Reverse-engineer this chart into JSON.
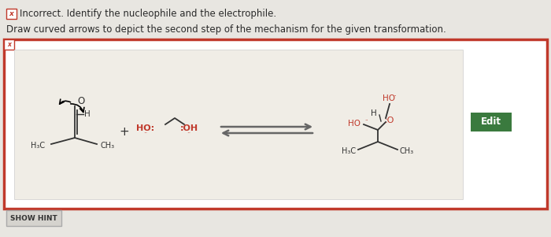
{
  "bg_color": "#d8d5d0",
  "page_bg": "#e8e6e1",
  "inner_bg": "#f0ede6",
  "panel_border": "#c0392b",
  "red_text": "#c0392b",
  "dark_text": "#2a2a2a",
  "edit_bg": "#3a7a3e",
  "arrow_gray": "#666666",
  "hint_bg": "#d5d3ce",
  "hint_border": "#aaaaaa",
  "line_color": "#333333",
  "title1": "Incorrect. Identify the nucleophile and the electrophile.",
  "title2": "Draw curved arrows to depict the second step of the mechanism for the given transformation.",
  "show_hint": "SHOW HINT",
  "edit_lbl": "Edit"
}
